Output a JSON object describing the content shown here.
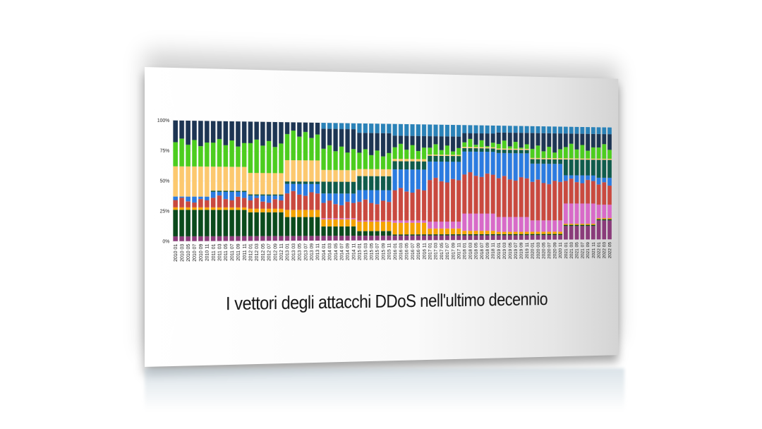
{
  "title": "I vettori degli attacchi DDoS nell'ultimo decennio",
  "chart_data": {
    "type": "bar",
    "stacked": true,
    "title": "I vettori degli attacchi DDoS nell'ultimo decennio",
    "xlabel": "",
    "ylabel": "",
    "ylim": [
      0,
      100
    ],
    "yticks": [
      "0%",
      "25%",
      "50%",
      "75%",
      "100%"
    ],
    "grid": true,
    "legend": "none",
    "categories": [
      "2010 01",
      "2010 03",
      "2010 05",
      "2010 07",
      "2010 09",
      "2010 11",
      "2011 01",
      "2011 03",
      "2011 05",
      "2011 07",
      "2011 09",
      "2011 11",
      "2012 01",
      "2012 03",
      "2012 05",
      "2012 07",
      "2012 09",
      "2012 11",
      "2013 01",
      "2013 03",
      "2013 05",
      "2013 07",
      "2013 09",
      "2013 11",
      "2014 01",
      "2014 03",
      "2014 05",
      "2014 07",
      "2014 09",
      "2014 11",
      "2015 01",
      "2015 03",
      "2015 05",
      "2015 07",
      "2015 09",
      "2015 11",
      "2016 01",
      "2016 03",
      "2016 05",
      "2016 07",
      "2016 09",
      "2016 11",
      "2017 01",
      "2017 03",
      "2017 05",
      "2017 07",
      "2017 09",
      "2017 11",
      "2018 01",
      "2018 03",
      "2018 05",
      "2018 07",
      "2018 09",
      "2018 11",
      "2019 01",
      "2019 03",
      "2019 05",
      "2019 07",
      "2019 09",
      "2019 11",
      "2020 01",
      "2020 03",
      "2020 05",
      "2020 07",
      "2020 09",
      "2020 11",
      "2021 01",
      "2021 03",
      "2021 05",
      "2021 07",
      "2021 09",
      "2021 11",
      "2022 01",
      "2022 03",
      "2022 05"
    ],
    "series": [
      {
        "color": "#8a3b7a",
        "values": [
          4,
          4,
          4,
          4,
          4,
          4,
          4,
          4,
          4,
          4,
          4,
          4,
          4,
          4,
          4,
          4,
          4,
          4,
          4,
          4,
          4,
          4,
          4,
          4,
          4,
          4,
          4,
          4,
          4,
          4,
          4,
          4,
          4,
          4,
          4,
          4,
          4,
          4,
          4,
          4,
          4,
          4,
          4,
          4,
          4,
          4,
          4,
          4,
          4,
          4,
          4,
          4,
          4,
          4,
          4,
          4,
          4,
          4,
          4,
          4,
          4,
          4,
          4,
          4,
          4,
          4,
          12,
          12,
          12,
          12,
          12,
          12,
          17,
          17,
          17
        ]
      },
      {
        "color": "#0b4a1c",
        "values": [
          22,
          22,
          22,
          22,
          22,
          22,
          22,
          22,
          22,
          22,
          22,
          22,
          20,
          20,
          20,
          20,
          20,
          20,
          16,
          16,
          16,
          16,
          16,
          16,
          8,
          8,
          8,
          8,
          8,
          8,
          4,
          4,
          4,
          4,
          4,
          4,
          1,
          1,
          1,
          1,
          1,
          1,
          1,
          1,
          1,
          1,
          1,
          1,
          1,
          1,
          1,
          1,
          1,
          1,
          1,
          1,
          1,
          1,
          1,
          1,
          1,
          1,
          1,
          1,
          1,
          1,
          1,
          1,
          1,
          1,
          1,
          1,
          1,
          1,
          1
        ]
      },
      {
        "color": "#f5a300",
        "values": [
          2,
          2,
          2,
          2,
          2,
          2,
          2,
          2,
          2,
          2,
          2,
          2,
          3,
          3,
          3,
          3,
          3,
          3,
          6,
          6,
          6,
          6,
          6,
          6,
          6,
          6,
          6,
          6,
          6,
          6,
          8,
          8,
          8,
          8,
          8,
          8,
          10,
          10,
          10,
          10,
          10,
          10,
          5,
          5,
          5,
          5,
          5,
          5,
          3,
          3,
          3,
          3,
          3,
          3,
          2,
          2,
          2,
          2,
          2,
          2,
          2,
          2,
          2,
          2,
          2,
          2,
          1,
          1,
          1,
          1,
          1,
          1,
          1,
          1,
          1
        ]
      },
      {
        "color": "#d86ac8",
        "values": [
          0,
          0,
          0,
          0,
          0,
          0,
          0,
          0,
          0,
          0,
          0,
          0,
          0,
          0,
          0,
          0,
          0,
          0,
          0,
          0,
          0,
          0,
          0,
          0,
          1,
          1,
          1,
          1,
          1,
          1,
          1,
          1,
          1,
          1,
          1,
          1,
          2,
          2,
          2,
          2,
          2,
          2,
          6,
          6,
          6,
          6,
          6,
          6,
          15,
          15,
          15,
          15,
          15,
          15,
          13,
          13,
          13,
          13,
          13,
          13,
          10,
          10,
          10,
          10,
          10,
          10,
          18,
          18,
          18,
          18,
          18,
          18,
          12,
          12,
          12
        ]
      },
      {
        "color": "#c9493f",
        "values": [
          6,
          8,
          5,
          4,
          7,
          6,
          8,
          10,
          7,
          6,
          9,
          8,
          7,
          9,
          6,
          5,
          8,
          7,
          14,
          16,
          13,
          12,
          15,
          14,
          13,
          15,
          12,
          11,
          14,
          13,
          16,
          18,
          15,
          14,
          17,
          16,
          26,
          28,
          25,
          24,
          27,
          26,
          36,
          38,
          35,
          34,
          37,
          36,
          34,
          36,
          33,
          32,
          35,
          34,
          34,
          36,
          33,
          32,
          35,
          34,
          34,
          36,
          33,
          32,
          35,
          34,
          20,
          22,
          19,
          18,
          21,
          20,
          18,
          20,
          17
        ]
      },
      {
        "color": "#2b7be0",
        "values": [
          3,
          1,
          4,
          5,
          2,
          3,
          5,
          3,
          6,
          7,
          4,
          5,
          4,
          2,
          5,
          6,
          3,
          4,
          8,
          6,
          9,
          10,
          7,
          8,
          8,
          6,
          9,
          10,
          7,
          8,
          10,
          8,
          11,
          12,
          9,
          10,
          18,
          16,
          19,
          20,
          17,
          18,
          16,
          14,
          17,
          18,
          15,
          16,
          20,
          18,
          21,
          22,
          19,
          20,
          22,
          20,
          23,
          24,
          21,
          22,
          16,
          14,
          17,
          18,
          15,
          16,
          5,
          3,
          6,
          7,
          4,
          5,
          6,
          4,
          7
        ]
      },
      {
        "color": "#0f5b4b",
        "values": [
          0,
          0,
          0,
          0,
          0,
          0,
          1,
          1,
          1,
          1,
          1,
          1,
          1,
          1,
          1,
          1,
          1,
          1,
          2,
          2,
          2,
          2,
          2,
          2,
          10,
          10,
          10,
          10,
          10,
          10,
          12,
          12,
          12,
          12,
          12,
          12,
          7,
          7,
          7,
          7,
          7,
          7,
          5,
          5,
          5,
          5,
          5,
          5,
          3,
          3,
          3,
          3,
          3,
          3,
          3,
          3,
          3,
          3,
          3,
          3,
          4,
          4,
          4,
          4,
          4,
          4,
          14,
          14,
          14,
          14,
          14,
          14,
          16,
          16,
          16
        ]
      },
      {
        "color": "#fcc86e",
        "values": [
          25,
          25,
          25,
          25,
          25,
          25,
          20,
          20,
          20,
          20,
          20,
          20,
          18,
          18,
          18,
          18,
          18,
          18,
          18,
          18,
          18,
          18,
          18,
          18,
          10,
          10,
          10,
          10,
          10,
          10,
          6,
          6,
          6,
          6,
          6,
          6,
          2,
          2,
          2,
          2,
          2,
          2,
          1,
          1,
          1,
          1,
          1,
          1,
          1,
          1,
          1,
          1,
          1,
          1,
          1,
          1,
          1,
          1,
          1,
          1,
          1,
          1,
          1,
          1,
          1,
          1,
          1,
          1,
          1,
          1,
          1,
          1,
          1,
          1,
          1
        ]
      },
      {
        "color": "#4ccd1e",
        "values": [
          20,
          23,
          18,
          22,
          17,
          20,
          20,
          23,
          18,
          22,
          17,
          20,
          25,
          28,
          23,
          27,
          22,
          25,
          22,
          25,
          20,
          24,
          19,
          22,
          18,
          21,
          16,
          20,
          15,
          18,
          14,
          17,
          12,
          16,
          11,
          14,
          10,
          13,
          8,
          12,
          7,
          10,
          6,
          9,
          4,
          8,
          3,
          6,
          4,
          7,
          2,
          6,
          1,
          4,
          4,
          7,
          2,
          6,
          1,
          4,
          8,
          11,
          6,
          10,
          5,
          8,
          10,
          13,
          8,
          12,
          7,
          10,
          10,
          13,
          8
        ]
      },
      {
        "color": "#1d3553",
        "values": [
          18,
          15,
          20,
          16,
          21,
          18,
          18,
          15,
          20,
          16,
          21,
          18,
          18,
          15,
          20,
          16,
          21,
          18,
          10,
          7,
          12,
          8,
          13,
          10,
          17,
          14,
          19,
          15,
          20,
          17,
          17,
          14,
          19,
          15,
          20,
          17,
          10,
          7,
          12,
          8,
          13,
          10,
          10,
          7,
          12,
          8,
          13,
          10,
          8,
          5,
          10,
          6,
          11,
          8,
          10,
          7,
          12,
          8,
          13,
          10,
          14,
          11,
          16,
          12,
          17,
          14,
          12,
          9,
          14,
          10,
          15,
          12,
          12,
          9,
          14
        ]
      },
      {
        "color": "#2a82b8",
        "values": [
          0,
          0,
          0,
          0,
          0,
          0,
          0,
          0,
          0,
          0,
          0,
          0,
          0,
          0,
          0,
          0,
          0,
          0,
          0,
          0,
          0,
          0,
          0,
          0,
          5,
          5,
          5,
          5,
          5,
          5,
          8,
          8,
          8,
          8,
          8,
          8,
          10,
          10,
          10,
          10,
          10,
          10,
          10,
          10,
          10,
          10,
          10,
          10,
          7,
          7,
          7,
          7,
          7,
          7,
          6,
          6,
          6,
          6,
          6,
          6,
          6,
          6,
          6,
          6,
          6,
          6,
          6,
          6,
          6,
          6,
          6,
          6,
          6,
          6,
          6
        ]
      }
    ]
  }
}
